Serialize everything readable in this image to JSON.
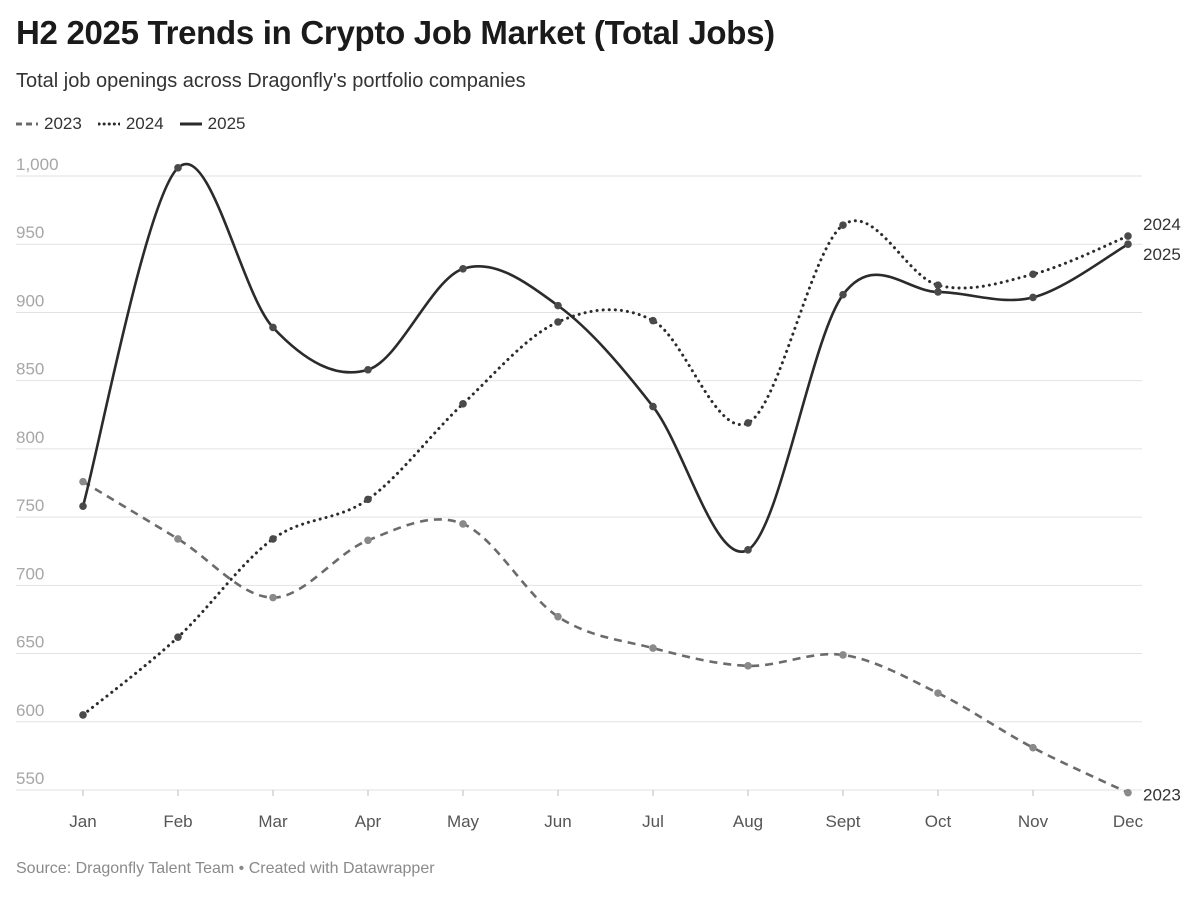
{
  "chart_data": {
    "type": "line",
    "title": "H2 2025 Trends in Crypto Job Market (Total Jobs)",
    "subtitle": "Total job openings across Dragonfly's portfolio companies",
    "categories": [
      "Jan",
      "Feb",
      "Mar",
      "Apr",
      "May",
      "Jun",
      "Jul",
      "Aug",
      "Sept",
      "Oct",
      "Nov",
      "Dec"
    ],
    "y_ticks": [
      550,
      600,
      650,
      700,
      750,
      800,
      850,
      900,
      950,
      1000
    ],
    "y_tick_labels": [
      "550",
      "600",
      "650",
      "700",
      "750",
      "800",
      "850",
      "900",
      "950",
      "1,000"
    ],
    "ylim": [
      550,
      1000
    ],
    "grid": true,
    "legend_position": "top-left",
    "series": [
      {
        "name": "2023",
        "style": "dashed",
        "color": "#6b6b6b",
        "values": [
          776,
          734,
          691,
          733,
          745,
          677,
          654,
          641,
          649,
          621,
          581,
          548
        ]
      },
      {
        "name": "2024",
        "style": "dotted",
        "color": "#2b2b2b",
        "values": [
          605,
          662,
          734,
          763,
          833,
          893,
          894,
          819,
          964,
          920,
          928,
          956
        ]
      },
      {
        "name": "2025",
        "style": "solid",
        "color": "#2b2b2b",
        "values": [
          758,
          1006,
          889,
          858,
          932,
          905,
          831,
          726,
          913,
          915,
          911,
          950
        ]
      }
    ],
    "end_labels": [
      "2023",
      "2024",
      "2025"
    ],
    "source": "Source: Dragonfly Talent Team • Created with Datawrapper"
  }
}
